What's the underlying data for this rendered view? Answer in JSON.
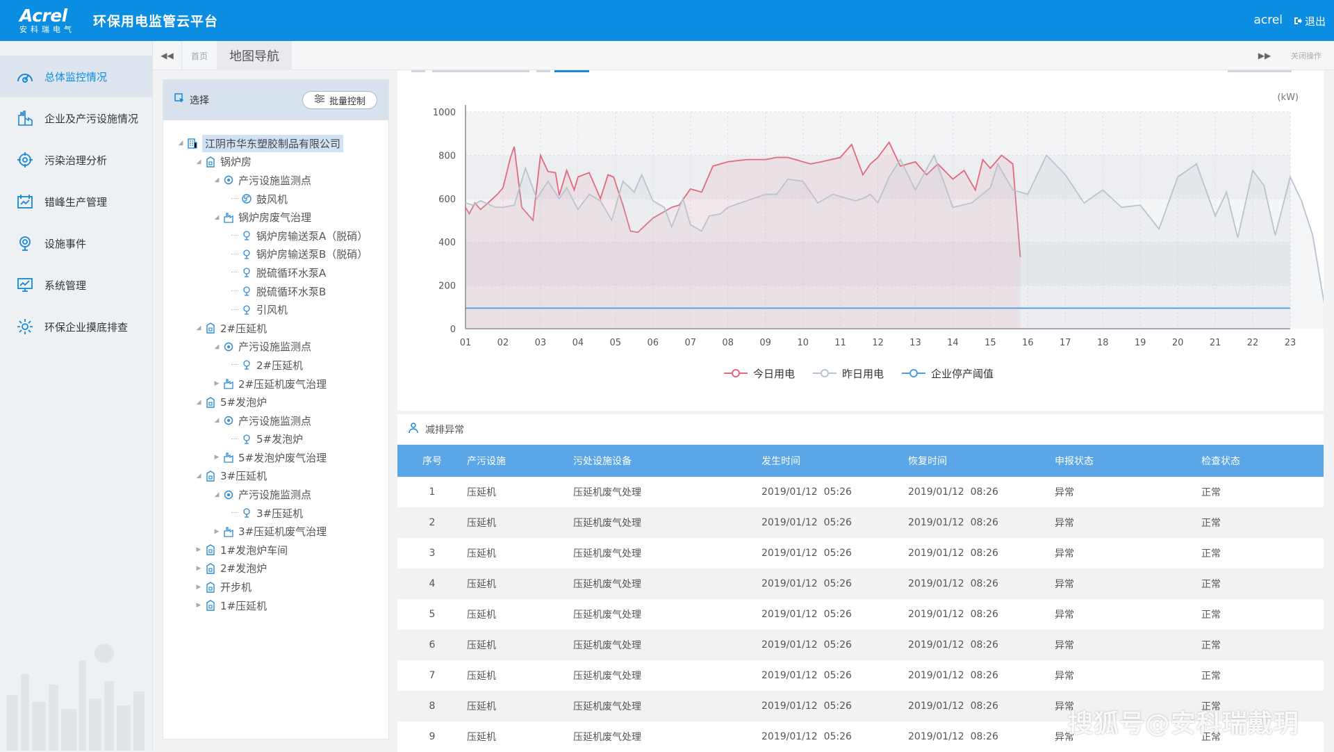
{
  "header": {
    "logo_text": "Acrel",
    "logo_sub": "安科瑞电气",
    "app_title": "环保用电监管云平台",
    "user": "acrel",
    "logout": "退出",
    "bg_color": "#0b8de2"
  },
  "sidebar": {
    "items": [
      {
        "label": "总体监控情况",
        "icon": "gauge-icon",
        "active": true
      },
      {
        "label": "企业及产污设施情况",
        "icon": "factory-icon"
      },
      {
        "label": "污染治理分析",
        "icon": "target-icon"
      },
      {
        "label": "错峰生产管理",
        "icon": "calendar-icon"
      },
      {
        "label": "设施事件",
        "icon": "radar-icon"
      },
      {
        "label": "系统管理",
        "icon": "monitor-icon"
      },
      {
        "label": "环保企业摸底排查",
        "icon": "gear-icon"
      }
    ]
  },
  "tabs": {
    "home": "首页",
    "current": "地图导航",
    "close_ops": "关闭操作"
  },
  "tree": {
    "header": "选择",
    "batch_button": "批量控制",
    "nodes": [
      {
        "label": "江阴市华东塑胶制品有限公司",
        "level": 0,
        "icon": "building-icon",
        "root": true
      },
      {
        "label": "锅炉房",
        "level": 1,
        "icon": "site-icon"
      },
      {
        "label": "产污设施监测点",
        "level": 2,
        "icon": "monitor-point-icon"
      },
      {
        "label": "鼓风机",
        "level": 3,
        "icon": "fan-icon"
      },
      {
        "label": "锅炉房废气治理",
        "level": 2,
        "icon": "treatment-icon"
      },
      {
        "label": "锅炉房输送泵A（脱硝）",
        "level": 3,
        "icon": "device-icon"
      },
      {
        "label": "锅炉房输送泵B（脱硝）",
        "level": 3,
        "icon": "device-icon"
      },
      {
        "label": "脱硫循环水泵A",
        "level": 3,
        "icon": "device-icon"
      },
      {
        "label": "脱硫循环水泵B",
        "level": 3,
        "icon": "device-icon"
      },
      {
        "label": "引风机",
        "level": 3,
        "icon": "device-icon"
      },
      {
        "label": "2#压延机",
        "level": 1,
        "icon": "site-icon"
      },
      {
        "label": "产污设施监测点",
        "level": 2,
        "icon": "monitor-point-icon"
      },
      {
        "label": "2#压延机",
        "level": 3,
        "icon": "device-icon"
      },
      {
        "label": "2#压延机废气治理",
        "level": 2,
        "icon": "treatment-icon"
      },
      {
        "label": "5#发泡炉",
        "level": 1,
        "icon": "site-icon"
      },
      {
        "label": "产污设施监测点",
        "level": 2,
        "icon": "monitor-point-icon"
      },
      {
        "label": "5#发泡炉",
        "level": 3,
        "icon": "device-icon"
      },
      {
        "label": "5#发泡炉废气治理",
        "level": 2,
        "icon": "treatment-icon"
      },
      {
        "label": "3#压延机",
        "level": 1,
        "icon": "site-icon"
      },
      {
        "label": "产污设施监测点",
        "level": 2,
        "icon": "monitor-point-icon"
      },
      {
        "label": "3#压延机",
        "level": 3,
        "icon": "device-icon"
      },
      {
        "label": "3#压延机废气治理",
        "level": 2,
        "icon": "treatment-icon"
      },
      {
        "label": "1#发泡炉车间",
        "level": 1,
        "icon": "site-icon"
      },
      {
        "label": "2#发泡炉",
        "level": 1,
        "icon": "site-icon"
      },
      {
        "label": "开步机",
        "level": 1,
        "icon": "site-icon"
      },
      {
        "label": "1#压延机",
        "level": 1,
        "icon": "site-icon"
      }
    ]
  },
  "chart_data": {
    "type": "line",
    "unit": "(kW)",
    "categories": [
      "01",
      "02",
      "03",
      "04",
      "05",
      "06",
      "07",
      "08",
      "09",
      "10",
      "11",
      "12",
      "13",
      "14",
      "15",
      "16",
      "17",
      "18",
      "19",
      "20",
      "21",
      "22",
      "23"
    ],
    "ylim": [
      0,
      1000
    ],
    "yticks": [
      0,
      200,
      400,
      600,
      800,
      1000
    ],
    "grid": true,
    "legend_position": "bottom",
    "series": [
      {
        "name": "今日用电",
        "color": "#e06a7c",
        "x": [
          0.0,
          0.1,
          0.25,
          0.4,
          0.6,
          0.85,
          1.0,
          1.2,
          1.3,
          1.5,
          1.8,
          2.0,
          2.2,
          2.4,
          2.5,
          2.7,
          2.9,
          3.0,
          3.3,
          3.5,
          3.6,
          3.8,
          3.95,
          4.2,
          4.4,
          4.6,
          5.0,
          5.2,
          5.5,
          5.7,
          6.0,
          6.3,
          6.6,
          6.8,
          7.0,
          7.5,
          8.0,
          8.3,
          8.6,
          8.8,
          9.2,
          9.5,
          10.0,
          10.3,
          10.6,
          10.8,
          11.0,
          11.3,
          11.6,
          12.0,
          12.3,
          12.6,
          13.0,
          13.3,
          13.6,
          13.8,
          14.0,
          14.3,
          14.6,
          14.8
        ],
        "y": [
          560,
          530,
          580,
          550,
          580,
          620,
          650,
          790,
          840,
          560,
          500,
          800,
          725,
          720,
          615,
          730,
          640,
          700,
          720,
          640,
          600,
          710,
          700,
          570,
          450,
          445,
          510,
          530,
          560,
          570,
          645,
          630,
          750,
          760,
          770,
          780,
          780,
          790,
          790,
          780,
          760,
          770,
          790,
          850,
          710,
          760,
          790,
          860,
          750,
          770,
          710,
          760,
          690,
          730,
          640,
          780,
          740,
          800,
          760,
          330
        ]
      },
      {
        "name": "昨日用电",
        "color": "#b9c2ce",
        "x": [
          0.0,
          0.2,
          0.4,
          0.8,
          1.0,
          1.3,
          1.6,
          1.9,
          2.2,
          2.5,
          2.7,
          3.0,
          3.3,
          3.6,
          3.9,
          4.2,
          4.5,
          4.7,
          5.0,
          5.3,
          5.5,
          5.8,
          6.0,
          6.3,
          6.5,
          6.8,
          7.0,
          7.5,
          8.0,
          8.3,
          8.6,
          9.0,
          9.4,
          9.8,
          10.0,
          10.2,
          10.4,
          10.6,
          10.8,
          11.0,
          11.3,
          11.6,
          12.0,
          12.5,
          13.0,
          13.5,
          14.0,
          14.2,
          14.6,
          15.0,
          15.5,
          16.0,
          16.5,
          17.0,
          17.5,
          18.0,
          18.5,
          19.0,
          19.5,
          20.0,
          20.3,
          20.6,
          21.0,
          21.3,
          21.6,
          22.0,
          22.3,
          22.6,
          23.0
        ],
        "y": [
          580,
          570,
          590,
          560,
          560,
          570,
          740,
          600,
          680,
          600,
          650,
          550,
          620,
          590,
          500,
          680,
          630,
          710,
          590,
          560,
          470,
          600,
          480,
          450,
          520,
          530,
          560,
          590,
          620,
          620,
          690,
          680,
          580,
          620,
          610,
          600,
          590,
          600,
          620,
          580,
          700,
          780,
          640,
          800,
          560,
          580,
          650,
          760,
          640,
          620,
          800,
          710,
          580,
          640,
          560,
          570,
          460,
          700,
          760,
          520,
          630,
          420,
          730,
          660,
          430,
          700,
          590,
          430,
          20
        ]
      },
      {
        "name": "企业停产阈值",
        "color": "#4a9de0",
        "x": [
          0,
          22
        ],
        "y": [
          95,
          95
        ]
      }
    ]
  },
  "anomalies": {
    "title": "减排异常",
    "columns": [
      "序号",
      "产污设施",
      "污处设施设备",
      "发生时间",
      "恢复时间",
      "申报状态",
      "检查状态"
    ],
    "rows": [
      [
        "1",
        "压延机",
        "压延机废气处理",
        "2019/01/12  05:26",
        "2019/01/12  08:26",
        "异常",
        "正常"
      ],
      [
        "2",
        "压延机",
        "压延机废气处理",
        "2019/01/12  05:26",
        "2019/01/12  08:26",
        "异常",
        "正常"
      ],
      [
        "3",
        "压延机",
        "压延机废气处理",
        "2019/01/12  05:26",
        "2019/01/12  08:26",
        "异常",
        "正常"
      ],
      [
        "4",
        "压延机",
        "压延机废气处理",
        "2019/01/12  05:26",
        "2019/01/12  08:26",
        "异常",
        "正常"
      ],
      [
        "5",
        "压延机",
        "压延机废气处理",
        "2019/01/12  05:26",
        "2019/01/12  08:26",
        "异常",
        "正常"
      ],
      [
        "6",
        "压延机",
        "压延机废气处理",
        "2019/01/12  05:26",
        "2019/01/12  08:26",
        "异常",
        "正常"
      ],
      [
        "7",
        "压延机",
        "压延机废气处理",
        "2019/01/12  05:26",
        "2019/01/12  08:26",
        "异常",
        "正常"
      ],
      [
        "8",
        "压延机",
        "压延机废气处理",
        "2019/01/12  05:26",
        "2019/01/12  08:26",
        "异常",
        "正常"
      ],
      [
        "9",
        "压延机",
        "压延机废气处理",
        "2019/01/12  05:26",
        "2019/01/12  08:26",
        "异常",
        "正常"
      ]
    ]
  },
  "watermark": "搜狐号@安科瑞戴玥"
}
